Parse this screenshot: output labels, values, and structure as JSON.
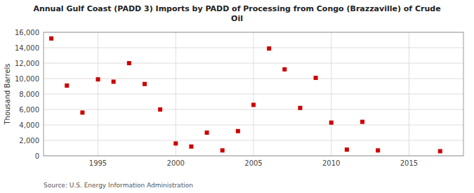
{
  "chart_data": {
    "type": "scatter",
    "title": "Annual Gulf Coast (PADD 3) Imports by PADD of Processing from Congo (Brazzaville) of Crude\nOil",
    "ylabel": "Thousand Barrels",
    "source": "Source: U.S. Energy Information Administration",
    "x": [
      1992,
      1993,
      1994,
      1995,
      1996,
      1997,
      1998,
      1999,
      2000,
      2001,
      2002,
      2003,
      2004,
      2005,
      2006,
      2007,
      2008,
      2009,
      2010,
      2011,
      2012,
      2013,
      2017
    ],
    "values": [
      15200,
      9100,
      5600,
      9900,
      9600,
      12000,
      9300,
      6000,
      1600,
      1200,
      3000,
      700,
      3200,
      6600,
      13900,
      11200,
      6200,
      10100,
      4300,
      800,
      4400,
      700,
      600
    ],
    "color": "#cc0000",
    "marker": "square",
    "xlim": [
      1991.5,
      2018.5
    ],
    "ylim": [
      0,
      16000
    ],
    "xticks": [
      1995,
      2000,
      2005,
      2010,
      2015
    ],
    "yticks": [
      0,
      {
        "value": 2000,
        "label": "2,000"
      },
      {
        "value": 4000,
        "label": "4,000"
      },
      {
        "value": 6000,
        "label": "6,000"
      },
      {
        "value": 8000,
        "label": "8,000"
      },
      {
        "value": 10000,
        "label": "10,000"
      },
      {
        "value": 12000,
        "label": "12,000"
      },
      {
        "value": 14000,
        "label": "14,000"
      },
      {
        "value": 16000,
        "label": "16,000"
      }
    ],
    "grid": true
  }
}
